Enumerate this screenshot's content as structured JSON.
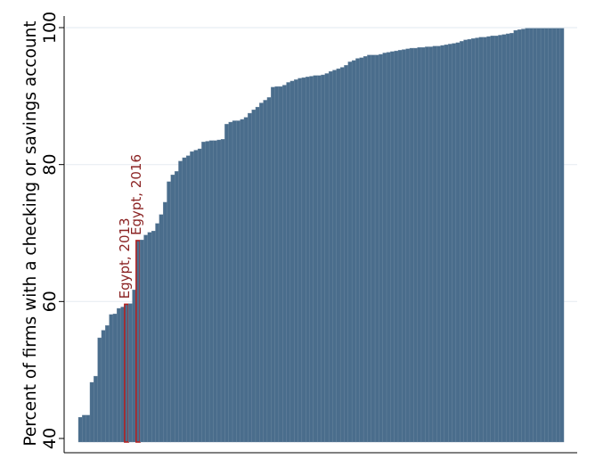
{
  "chart_data": {
    "type": "bar",
    "title": "",
    "xlabel": "",
    "ylabel": "Percent of firms with a checking or savings account",
    "ylim": [
      40,
      100
    ],
    "yticks": [
      40,
      60,
      80,
      100
    ],
    "ytick_labels": [
      "40",
      "60",
      "80",
      "100"
    ],
    "grid": true,
    "bar_color": "#4a6d8c",
    "highlight_color": "#b22222",
    "annotation_color": "#8b2323",
    "grid_color": "#e8eef3",
    "values": [
      43.1,
      43.4,
      43.4,
      48.2,
      49.1,
      54.7,
      55.8,
      56.5,
      58.1,
      58.2,
      59.0,
      59.2,
      59.6,
      59.7,
      61.7,
      68.9,
      69.0,
      69.7,
      70.1,
      70.3,
      71.4,
      72.7,
      74.5,
      77.5,
      78.5,
      79.0,
      80.5,
      81.0,
      81.3,
      81.9,
      82.1,
      82.3,
      83.3,
      83.4,
      83.5,
      83.5,
      83.6,
      83.7,
      85.9,
      86.2,
      86.4,
      86.4,
      86.6,
      86.9,
      87.5,
      88.0,
      88.4,
      89.0,
      89.4,
      89.8,
      91.3,
      91.4,
      91.4,
      91.6,
      92.0,
      92.2,
      92.4,
      92.6,
      92.7,
      92.8,
      92.9,
      93.0,
      93.0,
      93.1,
      93.3,
      93.6,
      93.8,
      94.0,
      94.2,
      94.5,
      95.0,
      95.2,
      95.5,
      95.6,
      95.8,
      96.0,
      96.0,
      96.0,
      96.1,
      96.3,
      96.4,
      96.5,
      96.6,
      96.7,
      96.8,
      96.9,
      97.0,
      97.0,
      97.1,
      97.1,
      97.2,
      97.2,
      97.3,
      97.3,
      97.4,
      97.5,
      97.6,
      97.7,
      97.8,
      98.0,
      98.2,
      98.3,
      98.4,
      98.5,
      98.6,
      98.6,
      98.7,
      98.8,
      98.8,
      98.9,
      99.0,
      99.1,
      99.2,
      99.6,
      99.7,
      99.8,
      99.9,
      99.9,
      99.9,
      99.9,
      99.9,
      99.9,
      99.9,
      99.9,
      99.9,
      99.9
    ],
    "highlighted": [
      {
        "index": 12,
        "label": "Egypt, 2013"
      },
      {
        "index": 15,
        "label": "Egypt, 2016"
      }
    ]
  }
}
